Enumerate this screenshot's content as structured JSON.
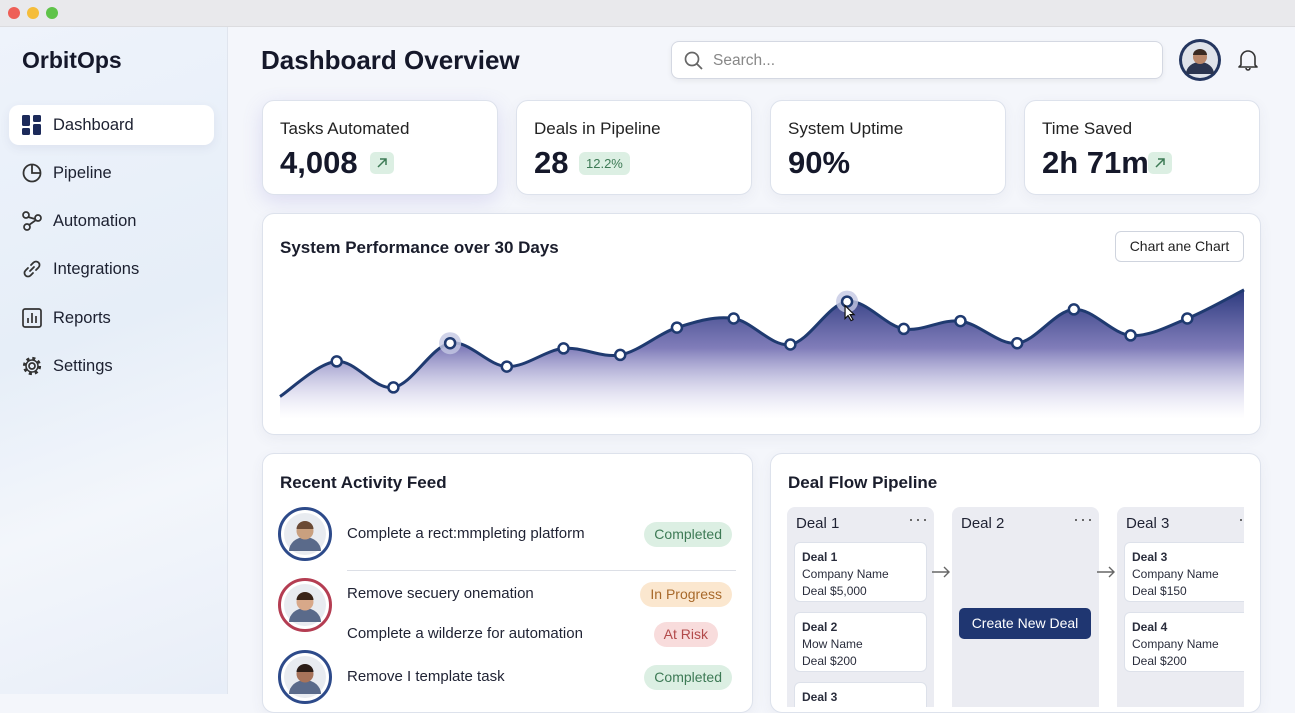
{
  "sidebar": {
    "brand": "OrbitOps",
    "nav": [
      "Dashboard",
      "Pipeline",
      "Automation",
      "Integrations",
      "Reports",
      "Settings"
    ]
  },
  "header": {
    "title": "Dashboard Overview",
    "search_placeholder": "Search..."
  },
  "stats": [
    {
      "label": "Tasks Automated",
      "value": "4,008"
    },
    {
      "label": "Deals in Pipeline",
      "value": "28",
      "badge": "12.2%"
    },
    {
      "label": "System Uptime",
      "value": "90%"
    },
    {
      "label": "Time Saved",
      "value": "2h 71m"
    }
  ],
  "performance": {
    "title": "System Performance over 30 Days",
    "button": "Chart ane Chart",
    "ylim": [
      0,
      100
    ],
    "color": "#1f3a70",
    "values": [
      15,
      42,
      22,
      56,
      38,
      52,
      47,
      68,
      75,
      55,
      88,
      67,
      73,
      56,
      82,
      62,
      75,
      97
    ]
  },
  "activity": {
    "title": "Recent Activity Feed",
    "items": [
      {
        "text": "Complete a rect:mmpleting platform",
        "status": "Completed",
        "badge_bg": "#dcefe3",
        "badge_color": "#3d7a55"
      },
      {
        "text": "Remove secuery onemation",
        "status": "In Progress",
        "badge_bg": "#fbe7cf",
        "badge_color": "#a8692a"
      },
      {
        "text": "Complete a wilderze for automation",
        "status": "At Risk",
        "badge_bg": "#f8dcdc",
        "badge_color": "#b24a4a"
      },
      {
        "text": "Remove I template task",
        "status": "Completed",
        "badge_bg": "#dcefe3",
        "badge_color": "#3d7a55"
      }
    ]
  },
  "pipeline": {
    "title": "Deal Flow Pipeline",
    "button": "Create New Deal",
    "columns": [
      {
        "name": "Deal 1",
        "cards": [
          {
            "title": "Deal 1",
            "company": "Company Name",
            "amount": "Deal $5,000"
          },
          {
            "title": "Deal 2",
            "company": "Mow Name",
            "amount": "Deal $200"
          },
          {
            "title": "Deal 3"
          }
        ]
      },
      {
        "name": "Deal 2",
        "cards": []
      },
      {
        "name": "Deal 3",
        "cards": [
          {
            "title": "Deal 3",
            "company": "Company Name",
            "amount": "Deal $150"
          },
          {
            "title": "Deal 4",
            "company": "Company Name",
            "amount": "Deal $200"
          }
        ]
      }
    ]
  }
}
